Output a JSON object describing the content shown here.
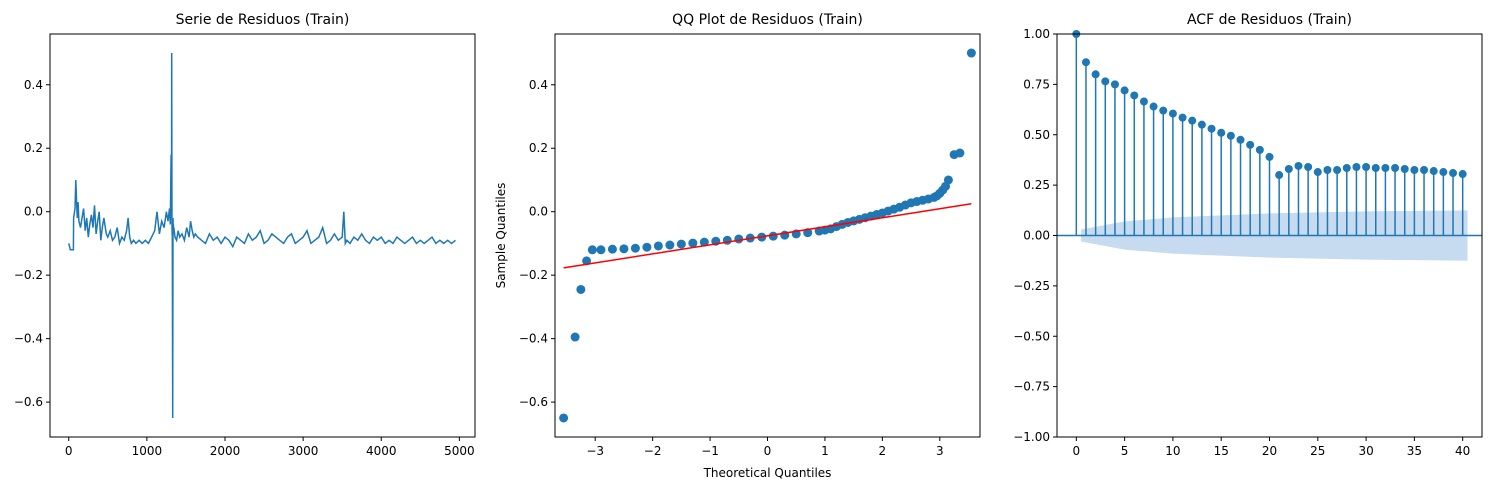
{
  "chart_data": [
    {
      "type": "line",
      "title": "Serie de Residuos (Train)",
      "xlabel": "",
      "ylabel": "",
      "xlim": [
        -240,
        5200
      ],
      "ylim": [
        -0.71,
        0.56
      ],
      "xticks": [
        0,
        1000,
        2000,
        3000,
        4000,
        5000
      ],
      "xtick_labels": [
        "0",
        "1000",
        "2000",
        "3000",
        "4000",
        "5000"
      ],
      "yticks": [
        -0.6,
        -0.4,
        -0.2,
        0.0,
        0.2,
        0.4
      ],
      "ytick_labels": [
        "−0.6",
        "−0.4",
        "−0.2",
        "0.0",
        "0.2",
        "0.4"
      ],
      "color": "#1f77b4",
      "grid": false,
      "series": [
        {
          "x": [
            0,
            20,
            40,
            60,
            62,
            80,
            90,
            100,
            110,
            120,
            130,
            150,
            170,
            190,
            210,
            230,
            250,
            270,
            290,
            310,
            330,
            350,
            370,
            390,
            410,
            430,
            450,
            480,
            500,
            530,
            560,
            590,
            620,
            650,
            680,
            710,
            740,
            760,
            780,
            800,
            830,
            860,
            900,
            940,
            980,
            1020,
            1060,
            1100,
            1130,
            1160,
            1190,
            1220,
            1250,
            1270,
            1290,
            1300,
            1310,
            1315,
            1318,
            1322,
            1325,
            1330,
            1335,
            1338,
            1340,
            1343,
            1346,
            1350,
            1360,
            1380,
            1400,
            1420,
            1450,
            1480,
            1510,
            1540,
            1560,
            1580,
            1600,
            1620,
            1650,
            1700,
            1750,
            1800,
            1850,
            1900,
            1950,
            2000,
            2050,
            2100,
            2150,
            2200,
            2250,
            2300,
            2350,
            2400,
            2450,
            2500,
            2550,
            2600,
            2650,
            2700,
            2750,
            2800,
            2850,
            2900,
            2950,
            3000,
            3050,
            3100,
            3150,
            3200,
            3250,
            3300,
            3350,
            3400,
            3450,
            3500,
            3520,
            3540,
            3560,
            3600,
            3650,
            3700,
            3750,
            3800,
            3850,
            3900,
            3950,
            4000,
            4050,
            4100,
            4150,
            4200,
            4250,
            4300,
            4350,
            4400,
            4450,
            4500,
            4550,
            4600,
            4650,
            4700,
            4750,
            4800,
            4850,
            4900,
            4950
          ],
          "y": [
            -0.1,
            -0.12,
            -0.12,
            -0.12,
            -0.02,
            0.01,
            0.1,
            0.03,
            -0.02,
            0.03,
            -0.03,
            -0.05,
            -0.02,
            0.01,
            -0.06,
            -0.02,
            -0.08,
            -0.04,
            -0.01,
            -0.05,
            0.02,
            -0.07,
            -0.03,
            0.0,
            -0.09,
            -0.05,
            -0.02,
            -0.07,
            -0.08,
            -0.06,
            -0.09,
            -0.08,
            -0.05,
            -0.1,
            -0.08,
            -0.09,
            -0.06,
            -0.02,
            -0.08,
            -0.1,
            -0.09,
            -0.1,
            -0.09,
            -0.1,
            -0.09,
            -0.1,
            -0.08,
            -0.06,
            0.0,
            -0.07,
            -0.03,
            -0.05,
            0.0,
            -0.03,
            0.01,
            -0.04,
            0.18,
            -0.02,
            0.5,
            -0.05,
            -0.08,
            -0.65,
            -0.02,
            -0.06,
            -0.04,
            -0.07,
            -0.05,
            -0.06,
            -0.08,
            -0.09,
            -0.06,
            -0.08,
            -0.07,
            -0.09,
            -0.05,
            -0.08,
            -0.03,
            -0.06,
            -0.08,
            -0.07,
            -0.08,
            -0.09,
            -0.1,
            -0.07,
            -0.09,
            -0.08,
            -0.1,
            -0.08,
            -0.09,
            -0.11,
            -0.08,
            -0.09,
            -0.1,
            -0.07,
            -0.09,
            -0.08,
            -0.06,
            -0.1,
            -0.09,
            -0.07,
            -0.08,
            -0.09,
            -0.1,
            -0.08,
            -0.07,
            -0.1,
            -0.09,
            -0.08,
            -0.06,
            -0.1,
            -0.09,
            -0.08,
            -0.05,
            -0.1,
            -0.09,
            -0.07,
            -0.09,
            -0.08,
            0.0,
            -0.1,
            -0.09,
            -0.1,
            -0.08,
            -0.09,
            -0.07,
            -0.09,
            -0.1,
            -0.08,
            -0.09,
            -0.08,
            -0.1,
            -0.09,
            -0.1,
            -0.08,
            -0.09,
            -0.1,
            -0.09,
            -0.08,
            -0.1,
            -0.09,
            -0.1,
            -0.09,
            -0.08,
            -0.1,
            -0.09,
            -0.1,
            -0.09,
            -0.1,
            -0.09
          ]
        }
      ]
    },
    {
      "type": "scatter",
      "title": "QQ Plot de Residuos (Train)",
      "xlabel": "Theoretical Quantiles",
      "ylabel": "Sample Quantiles",
      "xlim": [
        -3.7,
        3.7
      ],
      "ylim": [
        -0.71,
        0.56
      ],
      "xticks": [
        -3,
        -2,
        -1,
        0,
        1,
        2,
        3
      ],
      "xtick_labels": [
        "−3",
        "−2",
        "−1",
        "0",
        "1",
        "2",
        "3"
      ],
      "yticks": [
        -0.6,
        -0.4,
        -0.2,
        0.0,
        0.2,
        0.4
      ],
      "ytick_labels": [
        "−0.6",
        "−0.4",
        "−0.2",
        "0.0",
        "0.2",
        "0.4"
      ],
      "point_color": "#1f77b4",
      "line_color": "#ff0000",
      "grid": false,
      "fit_line": {
        "x": [
          -3.55,
          3.55
        ],
        "y": [
          -0.177,
          0.025
        ]
      },
      "points": {
        "x": [
          -3.55,
          -3.35,
          -3.25,
          -3.15,
          -3.05,
          -2.9,
          -2.7,
          -2.5,
          -2.3,
          -2.1,
          -1.9,
          -1.7,
          -1.5,
          -1.3,
          -1.1,
          -0.9,
          -0.7,
          -0.5,
          -0.3,
          -0.1,
          0.1,
          0.3,
          0.5,
          0.7,
          0.9,
          1.0,
          1.1,
          1.2,
          1.3,
          1.4,
          1.5,
          1.6,
          1.7,
          1.8,
          1.9,
          2.0,
          2.1,
          2.2,
          2.3,
          2.4,
          2.5,
          2.6,
          2.7,
          2.8,
          2.9,
          2.95,
          3.0,
          3.05,
          3.1,
          3.15,
          3.25,
          3.35,
          3.55
        ],
        "y": [
          -0.65,
          -0.395,
          -0.245,
          -0.155,
          -0.12,
          -0.12,
          -0.118,
          -0.117,
          -0.115,
          -0.112,
          -0.108,
          -0.105,
          -0.102,
          -0.099,
          -0.096,
          -0.093,
          -0.09,
          -0.086,
          -0.083,
          -0.08,
          -0.077,
          -0.074,
          -0.07,
          -0.066,
          -0.061,
          -0.058,
          -0.054,
          -0.047,
          -0.04,
          -0.034,
          -0.029,
          -0.024,
          -0.019,
          -0.014,
          -0.009,
          -0.004,
          0.002,
          0.008,
          0.014,
          0.021,
          0.028,
          0.032,
          0.036,
          0.04,
          0.045,
          0.05,
          0.058,
          0.068,
          0.08,
          0.1,
          0.18,
          0.185,
          0.5
        ]
      }
    },
    {
      "type": "stem",
      "title": "ACF de Residuos (Train)",
      "xlabel": "",
      "ylabel": "",
      "xlim": [
        -2,
        42
      ],
      "ylim": [
        -1.0,
        1.0
      ],
      "xticks": [
        0,
        5,
        10,
        15,
        20,
        25,
        30,
        35,
        40
      ],
      "xtick_labels": [
        "0",
        "5",
        "10",
        "15",
        "20",
        "25",
        "30",
        "35",
        "40"
      ],
      "yticks": [
        -1.0,
        -0.75,
        -0.5,
        -0.25,
        0.0,
        0.25,
        0.5,
        0.75,
        1.0
      ],
      "ytick_labels": [
        "−1.00",
        "−0.75",
        "−0.50",
        "−0.25",
        "0.00",
        "0.25",
        "0.50",
        "0.75",
        "1.00"
      ],
      "stem_color": "#1f77b4",
      "band_color": "#c6dbef",
      "grid": false,
      "lags": [
        0,
        1,
        2,
        3,
        4,
        5,
        6,
        7,
        8,
        9,
        10,
        11,
        12,
        13,
        14,
        15,
        16,
        17,
        18,
        19,
        20,
        21,
        22,
        23,
        24,
        25,
        26,
        27,
        28,
        29,
        30,
        31,
        32,
        33,
        34,
        35,
        36,
        37,
        38,
        39,
        40
      ],
      "acf": [
        1.0,
        0.86,
        0.8,
        0.765,
        0.75,
        0.72,
        0.695,
        0.665,
        0.64,
        0.62,
        0.605,
        0.585,
        0.57,
        0.55,
        0.53,
        0.51,
        0.495,
        0.475,
        0.45,
        0.425,
        0.39,
        0.3,
        0.33,
        0.345,
        0.34,
        0.315,
        0.325,
        0.325,
        0.335,
        0.34,
        0.34,
        0.335,
        0.335,
        0.335,
        0.33,
        0.325,
        0.325,
        0.32,
        0.315,
        0.31,
        0.305
      ],
      "conf_band": {
        "lags": [
          0.5,
          5,
          10,
          15,
          20,
          25,
          30,
          35,
          40.5
        ],
        "upper": [
          0.03,
          0.07,
          0.09,
          0.1,
          0.11,
          0.115,
          0.12,
          0.122,
          0.125
        ]
      }
    }
  ]
}
